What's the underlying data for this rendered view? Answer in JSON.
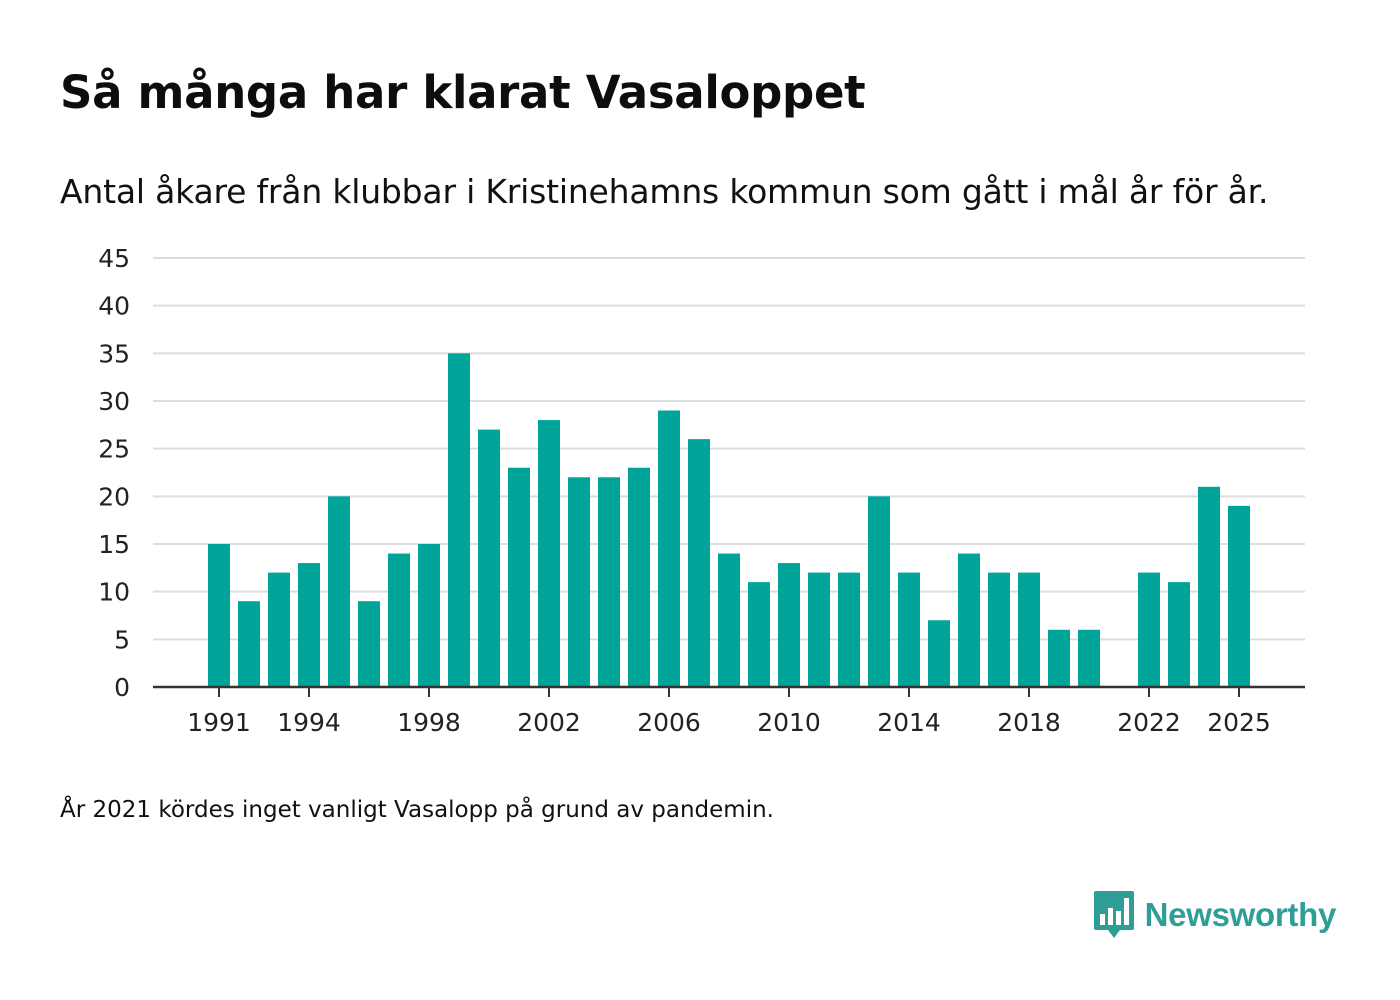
{
  "title": "Så många har klarat Vasaloppet",
  "subtitle": "Antal åkare från klubbar i Kristinehamns kommun som gått i mål år för år.",
  "note": "År 2021 kördes inget vanligt Vasalopp på grund av pandemin.",
  "brand": {
    "name": "Newsworthy",
    "icon": "newsworthy-logo-icon",
    "color": "#2f9e96"
  },
  "colors": {
    "bar": "#00a499",
    "grid": "#dddddd",
    "axis": "#333333"
  },
  "chart_data": {
    "type": "bar",
    "title": "Så många har klarat Vasaloppet",
    "xlabel": "",
    "ylabel": "",
    "ylim": [
      0,
      45
    ],
    "yticks": [
      0,
      5,
      10,
      15,
      20,
      25,
      30,
      35,
      40,
      45
    ],
    "xticks": [
      1991,
      1994,
      1998,
      2002,
      2006,
      2010,
      2014,
      2018,
      2022,
      2025
    ],
    "grid": true,
    "categories": [
      1991,
      1992,
      1993,
      1994,
      1995,
      1996,
      1997,
      1998,
      1999,
      2000,
      2001,
      2002,
      2003,
      2004,
      2005,
      2006,
      2007,
      2008,
      2009,
      2010,
      2011,
      2012,
      2013,
      2014,
      2015,
      2016,
      2017,
      2018,
      2019,
      2020,
      2021,
      2022,
      2023,
      2024,
      2025
    ],
    "values": [
      15,
      9,
      12,
      13,
      20,
      9,
      14,
      15,
      35,
      27,
      23,
      28,
      22,
      22,
      23,
      29,
      26,
      14,
      11,
      13,
      12,
      12,
      20,
      12,
      7,
      14,
      12,
      12,
      6,
      6,
      null,
      12,
      11,
      21,
      19
    ]
  }
}
